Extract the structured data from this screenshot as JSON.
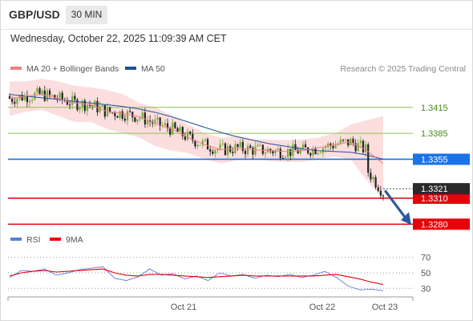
{
  "header": {
    "symbol": "GBP/USD",
    "timeframe": "30 MIN",
    "datetime": "Wednesday, October 22, 2025 11:09:39 AM CET"
  },
  "legend": {
    "ma_bb": "MA 20 + Bollinger Bands",
    "ma50": "MA 50",
    "credit": "Research © 2025 Trading Central",
    "rsi": "RSI",
    "rsi_ma": "9MA"
  },
  "colors": {
    "ma_bb": "#f08080",
    "ma50": "#1f4e9c",
    "band": "#fbd3d3",
    "bull": "#6fae3c",
    "bear": "#222222",
    "resistance": "#8cc450",
    "pivot": "#1a73e8",
    "support": "#e8000b",
    "rsi": "#5b7fdc",
    "arrow": "#2b5a9e"
  },
  "chart_data": [
    {
      "type": "candlestick",
      "title": "GBP/USD 30 MIN",
      "x_tick_labels": [
        "Oct 21",
        "Oct 22",
        "Oct 23"
      ],
      "ylim": [
        1.3272,
        1.345
      ],
      "levels": [
        {
          "value": 1.3415,
          "label": "1.3415",
          "kind": "resistance"
        },
        {
          "value": 1.3385,
          "label": "1.3385",
          "kind": "resistance"
        },
        {
          "value": 1.3355,
          "label": "1.3355",
          "kind": "pivot"
        },
        {
          "value": 1.331,
          "label": "1.3310",
          "kind": "support"
        },
        {
          "value": 1.328,
          "label": "1.3280",
          "kind": "support"
        }
      ],
      "last_price": {
        "value": 1.3321,
        "label": "1.3321"
      },
      "ma50": [
        1.343,
        1.3428,
        1.3426,
        1.3424,
        1.3422,
        1.342,
        1.3418,
        1.3416,
        1.3413,
        1.3409,
        1.3404,
        1.3398,
        1.3392,
        1.3386,
        1.3381,
        1.3377,
        1.3373,
        1.337,
        1.3367,
        1.3365,
        1.3364,
        1.3363,
        1.336,
        1.3355
      ],
      "ma20": [
        1.3425,
        1.3428,
        1.343,
        1.3425,
        1.342,
        1.3418,
        1.341,
        1.3408,
        1.3404,
        1.3396,
        1.339,
        1.338,
        1.3372,
        1.3366,
        1.3368,
        1.3366,
        1.3365,
        1.3364,
        1.3365,
        1.3368,
        1.3372,
        1.3375,
        1.3365,
        1.335
      ],
      "band_upper": [
        1.3445,
        1.3445,
        1.3448,
        1.3445,
        1.344,
        1.3438,
        1.3435,
        1.343,
        1.342,
        1.3415,
        1.3405,
        1.3395,
        1.3385,
        1.338,
        1.3382,
        1.3378,
        1.3378,
        1.3377,
        1.3378,
        1.338,
        1.3385,
        1.3395,
        1.34,
        1.3405
      ],
      "band_lower": [
        1.3405,
        1.341,
        1.3412,
        1.3405,
        1.3398,
        1.3398,
        1.339,
        1.3385,
        1.338,
        1.337,
        1.3365,
        1.3362,
        1.3355,
        1.335,
        1.3354,
        1.3355,
        1.3353,
        1.3352,
        1.3352,
        1.3355,
        1.3358,
        1.3355,
        1.333,
        1.331
      ]
    },
    {
      "type": "line",
      "title": "RSI",
      "ylim": [
        22,
        78
      ],
      "y_ticks": [
        70,
        50,
        30
      ],
      "series": [
        {
          "name": "RSI",
          "values": [
            44,
            53,
            52,
            55,
            47,
            50,
            54,
            56,
            58,
            43,
            40,
            45,
            55,
            47,
            49,
            42,
            46,
            40,
            50,
            46,
            48,
            43,
            47,
            45,
            48,
            44,
            47,
            52,
            44,
            33,
            28,
            29,
            27
          ]
        },
        {
          "name": "9MA",
          "values": [
            46,
            50,
            52,
            53,
            51,
            52,
            53,
            54,
            55,
            50,
            47,
            46,
            48,
            48,
            47,
            46,
            45,
            44,
            45,
            46,
            47,
            46,
            46,
            46,
            46,
            46,
            46,
            47,
            48,
            45,
            42,
            38,
            35
          ]
        }
      ]
    }
  ]
}
